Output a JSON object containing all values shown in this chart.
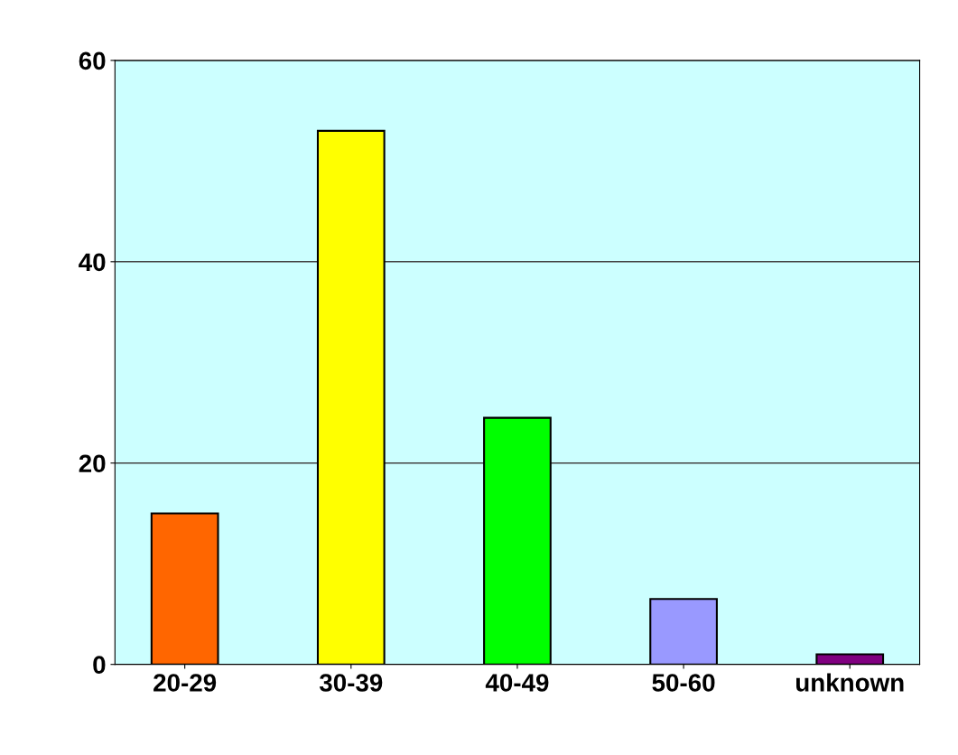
{
  "chart_data": {
    "type": "bar",
    "categories": [
      "20-29",
      "30-39",
      "40-49",
      "50-60",
      "unknown"
    ],
    "values": [
      15,
      53,
      24.5,
      6.5,
      1
    ],
    "colors": [
      "#ff6600",
      "#ffff00",
      "#00ff00",
      "#9999ff",
      "#800080"
    ],
    "ylim": [
      0,
      60
    ],
    "yticks": [
      0,
      20,
      40,
      60
    ],
    "grid": "y",
    "legend": false
  }
}
